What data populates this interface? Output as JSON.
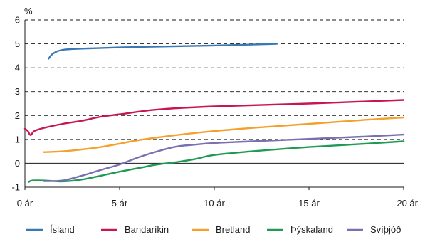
{
  "chart_data": {
    "type": "line",
    "ylabel": "%",
    "xlim": [
      0,
      20
    ],
    "ylim": [
      -1,
      6
    ],
    "x_ticks": [
      {
        "value": 0,
        "label": "0 ár"
      },
      {
        "value": 5,
        "label": "5 ár"
      },
      {
        "value": 10,
        "label": "10 ár"
      },
      {
        "value": 15,
        "label": "15 ár"
      },
      {
        "value": 20,
        "label": "20 ár"
      }
    ],
    "y_ticks": [
      {
        "value": -1,
        "label": "-1"
      },
      {
        "value": 0,
        "label": "0"
      },
      {
        "value": 1,
        "label": "1"
      },
      {
        "value": 2,
        "label": "2"
      },
      {
        "value": 3,
        "label": "3"
      },
      {
        "value": 4,
        "label": "4"
      },
      {
        "value": 5,
        "label": "5"
      },
      {
        "value": 6,
        "label": "6"
      }
    ],
    "grid": "horizontal-dashed",
    "legend_position": "bottom",
    "series": [
      {
        "name": "Ísland",
        "color": "#3a78b4",
        "points": [
          [
            1.25,
            4.38
          ],
          [
            1.5,
            4.6
          ],
          [
            2,
            4.75
          ],
          [
            3,
            4.8
          ],
          [
            5,
            4.85
          ],
          [
            8,
            4.9
          ],
          [
            10,
            4.93
          ],
          [
            12,
            4.97
          ],
          [
            13.3,
            5.0
          ]
        ]
      },
      {
        "name": "Bandaríkin",
        "color": "#c8174f",
        "points": [
          [
            0,
            1.45
          ],
          [
            0.15,
            1.35
          ],
          [
            0.3,
            1.18
          ],
          [
            0.5,
            1.35
          ],
          [
            1,
            1.48
          ],
          [
            2,
            1.65
          ],
          [
            3,
            1.78
          ],
          [
            4,
            1.95
          ],
          [
            5,
            2.05
          ],
          [
            7,
            2.25
          ],
          [
            10,
            2.38
          ],
          [
            15,
            2.5
          ],
          [
            20,
            2.65
          ]
        ]
      },
      {
        "name": "Bretland",
        "color": "#f4a02c",
        "points": [
          [
            1,
            0.47
          ],
          [
            2,
            0.5
          ],
          [
            3,
            0.58
          ],
          [
            4,
            0.68
          ],
          [
            5,
            0.82
          ],
          [
            6,
            0.97
          ],
          [
            8,
            1.18
          ],
          [
            10,
            1.35
          ],
          [
            12,
            1.48
          ],
          [
            15,
            1.65
          ],
          [
            18,
            1.82
          ],
          [
            20,
            1.92
          ]
        ]
      },
      {
        "name": "Þýskaland",
        "color": "#1f9a55",
        "points": [
          [
            0.2,
            -0.78
          ],
          [
            0.4,
            -0.72
          ],
          [
            1,
            -0.72
          ],
          [
            2,
            -0.76
          ],
          [
            3,
            -0.68
          ],
          [
            4,
            -0.52
          ],
          [
            5,
            -0.35
          ],
          [
            6,
            -0.2
          ],
          [
            7,
            -0.05
          ],
          [
            8,
            0.05
          ],
          [
            9,
            0.18
          ],
          [
            10,
            0.35
          ],
          [
            12,
            0.5
          ],
          [
            15,
            0.68
          ],
          [
            18,
            0.82
          ],
          [
            20,
            0.92
          ]
        ]
      },
      {
        "name": "Svíþjóð",
        "color": "#7a6fb0",
        "points": [
          [
            1,
            -0.75
          ],
          [
            2,
            -0.72
          ],
          [
            3,
            -0.52
          ],
          [
            4,
            -0.28
          ],
          [
            5,
            -0.05
          ],
          [
            6,
            0.25
          ],
          [
            7,
            0.5
          ],
          [
            8,
            0.7
          ],
          [
            9,
            0.78
          ],
          [
            10,
            0.85
          ],
          [
            12,
            0.92
          ],
          [
            15,
            1.02
          ],
          [
            18,
            1.12
          ],
          [
            20,
            1.2
          ]
        ]
      }
    ]
  }
}
